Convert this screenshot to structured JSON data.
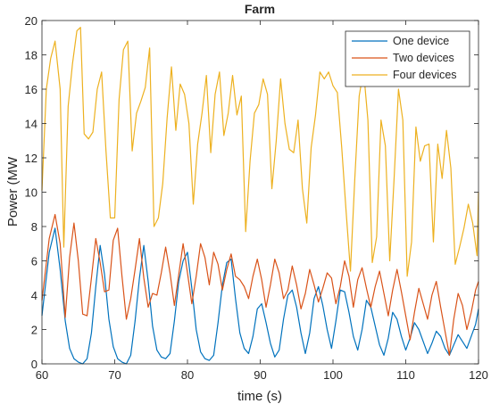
{
  "chart_data": {
    "type": "line",
    "title": "Farm",
    "xlabel": "time (s)",
    "ylabel": "Power (MW",
    "xlim": [
      60,
      120
    ],
    "ylim": [
      0,
      20
    ],
    "xticks": [
      60,
      70,
      80,
      90,
      100,
      110,
      120
    ],
    "yticks": [
      0,
      2,
      4,
      6,
      8,
      10,
      12,
      14,
      16,
      18,
      20
    ],
    "grid": false,
    "legend_position": "top-right",
    "series": [
      {
        "name": "One device",
        "color": "#0072BD",
        "x": [
          60.0,
          61.0,
          61.8,
          62.5,
          63.2,
          63.8,
          64.4,
          65.0,
          65.6,
          66.2,
          66.8,
          67.4,
          68.0,
          68.6,
          69.2,
          69.8,
          70.4,
          71.0,
          71.6,
          72.2,
          72.8,
          73.4,
          74.0,
          74.6,
          75.2,
          75.8,
          76.4,
          77.0,
          77.6,
          78.2,
          78.8,
          79.4,
          80.0,
          80.6,
          81.2,
          81.8,
          82.4,
          83.0,
          83.6,
          84.2,
          84.8,
          85.4,
          86.0,
          86.6,
          87.2,
          87.8,
          88.4,
          89.0,
          89.6,
          90.2,
          90.8,
          91.4,
          92.0,
          92.6,
          93.2,
          93.8,
          94.4,
          95.0,
          95.6,
          96.2,
          96.8,
          97.4,
          98.0,
          98.6,
          99.2,
          99.8,
          100.4,
          101.0,
          101.6,
          102.2,
          102.8,
          103.4,
          104.0,
          104.6,
          105.2,
          105.8,
          106.4,
          107.0,
          107.6,
          108.2,
          108.8,
          109.4,
          110.0,
          110.6,
          111.2,
          111.8,
          112.4,
          113.0,
          113.6,
          114.2,
          114.8,
          115.4,
          116.0,
          116.6,
          117.2,
          117.8,
          118.4,
          119.0,
          119.6,
          120.0
        ],
        "y": [
          2.8,
          6.5,
          7.9,
          5.5,
          2.5,
          0.9,
          0.3,
          0.1,
          0.0,
          0.3,
          1.8,
          4.5,
          6.9,
          5.2,
          2.6,
          1.0,
          0.3,
          0.1,
          0.0,
          0.5,
          2.5,
          5.0,
          6.9,
          4.8,
          2.2,
          0.8,
          0.4,
          0.3,
          0.6,
          2.5,
          4.8,
          6.0,
          6.5,
          4.4,
          2.0,
          0.7,
          0.3,
          0.2,
          0.5,
          2.4,
          4.6,
          5.9,
          6.1,
          3.8,
          1.8,
          0.9,
          0.6,
          1.6,
          3.2,
          3.5,
          2.4,
          1.2,
          0.4,
          0.8,
          2.6,
          4.0,
          4.3,
          3.3,
          1.8,
          0.6,
          1.8,
          3.8,
          4.5,
          3.4,
          2.0,
          0.9,
          2.5,
          4.3,
          4.2,
          3.0,
          1.6,
          0.8,
          2.0,
          3.7,
          3.3,
          2.2,
          1.1,
          0.5,
          1.5,
          3.0,
          2.6,
          1.6,
          0.8,
          1.5,
          2.4,
          2.0,
          1.3,
          0.6,
          1.2,
          1.9,
          1.6,
          0.9,
          0.5,
          1.1,
          1.7,
          1.3,
          0.9,
          1.6,
          2.3,
          3.2
        ]
      },
      {
        "name": "Two devices",
        "color": "#D95319",
        "x": [
          60.0,
          61.0,
          61.8,
          62.5,
          63.2,
          63.8,
          64.4,
          65.0,
          65.6,
          66.2,
          66.8,
          67.4,
          68.0,
          68.6,
          69.2,
          69.8,
          70.4,
          71.0,
          71.6,
          72.2,
          72.8,
          73.4,
          74.0,
          74.6,
          75.2,
          75.8,
          76.4,
          77.0,
          77.6,
          78.2,
          78.8,
          79.4,
          80.0,
          80.6,
          81.2,
          81.8,
          82.4,
          83.0,
          83.6,
          84.2,
          84.8,
          85.4,
          86.0,
          86.6,
          87.2,
          87.8,
          88.4,
          89.0,
          89.6,
          90.2,
          90.8,
          91.4,
          92.0,
          92.6,
          93.2,
          93.8,
          94.4,
          95.0,
          95.6,
          96.2,
          96.8,
          97.4,
          98.0,
          98.6,
          99.2,
          99.8,
          100.4,
          101.0,
          101.6,
          102.2,
          102.8,
          103.4,
          104.0,
          104.6,
          105.2,
          105.8,
          106.4,
          107.0,
          107.6,
          108.2,
          108.8,
          109.4,
          110.0,
          110.6,
          111.2,
          111.8,
          112.4,
          113.0,
          113.6,
          114.2,
          114.8,
          115.4,
          116.0,
          116.6,
          117.2,
          117.8,
          118.4,
          119.0,
          119.6,
          120.0
        ],
        "y": [
          3.7,
          7.3,
          8.7,
          7.0,
          2.7,
          6.2,
          8.2,
          6.0,
          2.9,
          2.8,
          5.0,
          7.3,
          5.9,
          4.2,
          4.3,
          7.2,
          7.9,
          5.1,
          2.6,
          3.8,
          5.5,
          7.3,
          5.0,
          3.3,
          4.1,
          4.0,
          5.3,
          6.8,
          5.3,
          3.4,
          5.2,
          7.0,
          5.3,
          3.5,
          5.1,
          7.0,
          6.2,
          4.6,
          6.5,
          5.8,
          4.3,
          5.5,
          6.4,
          5.1,
          4.9,
          4.5,
          3.8,
          5.1,
          6.1,
          4.9,
          3.3,
          4.6,
          6.1,
          5.3,
          3.8,
          4.3,
          5.7,
          4.6,
          3.2,
          4.1,
          5.5,
          4.6,
          3.6,
          4.4,
          5.3,
          5.0,
          3.5,
          4.5,
          6.0,
          5.1,
          3.3,
          4.9,
          5.6,
          4.4,
          3.3,
          4.5,
          5.4,
          4.1,
          2.8,
          4.3,
          5.5,
          4.2,
          2.8,
          1.4,
          3.0,
          4.4,
          3.5,
          2.6,
          4.0,
          4.8,
          3.3,
          1.9,
          0.5,
          2.6,
          4.1,
          3.4,
          2.0,
          3.0,
          4.3,
          4.8
        ]
      },
      {
        "name": "Four devices",
        "color": "#EDB120",
        "x": [
          60.0,
          60.6,
          61.2,
          61.8,
          62.5,
          63.0,
          63.6,
          64.2,
          64.8,
          65.3,
          65.8,
          66.4,
          67.0,
          67.6,
          68.2,
          68.8,
          69.4,
          70.0,
          70.6,
          71.2,
          71.8,
          72.4,
          73.0,
          73.6,
          74.2,
          74.8,
          75.4,
          76.0,
          76.6,
          77.2,
          77.8,
          78.4,
          79.0,
          79.6,
          80.2,
          80.8,
          81.4,
          82.0,
          82.6,
          83.2,
          83.8,
          84.4,
          85.0,
          85.6,
          86.2,
          86.8,
          87.4,
          88.0,
          88.6,
          89.2,
          89.8,
          90.4,
          91.0,
          91.6,
          92.2,
          92.8,
          93.4,
          94.0,
          94.6,
          95.2,
          95.8,
          96.4,
          97.0,
          97.6,
          98.2,
          98.8,
          99.4,
          100.0,
          100.6,
          101.2,
          101.8,
          102.4,
          103.0,
          103.6,
          104.2,
          104.8,
          105.4,
          106.0,
          106.6,
          107.2,
          107.8,
          108.4,
          109.0,
          109.6,
          110.2,
          110.8,
          111.4,
          112.0,
          112.6,
          113.2,
          113.8,
          114.4,
          115.0,
          115.6,
          116.2,
          116.8,
          117.4,
          118.0,
          118.6,
          119.2,
          119.8,
          120.0
        ],
        "y": [
          10.1,
          16.0,
          17.8,
          18.8,
          16.0,
          6.8,
          15.0,
          17.5,
          19.4,
          19.6,
          13.4,
          13.1,
          13.5,
          16.0,
          17.0,
          12.4,
          8.5,
          8.5,
          15.4,
          18.3,
          18.8,
          12.4,
          14.6,
          15.3,
          16.1,
          18.4,
          8.0,
          8.5,
          10.5,
          14.3,
          17.3,
          13.6,
          16.3,
          15.7,
          14.0,
          9.3,
          12.8,
          14.6,
          16.8,
          12.3,
          15.7,
          17.0,
          13.3,
          14.6,
          16.8,
          14.5,
          15.6,
          7.7,
          11.8,
          14.6,
          15.1,
          16.6,
          15.7,
          10.2,
          13.0,
          16.6,
          14.0,
          12.5,
          12.3,
          14.2,
          10.2,
          8.2,
          12.6,
          14.5,
          17.0,
          16.6,
          17.0,
          16.2,
          15.8,
          12.6,
          8.9,
          5.4,
          10.8,
          15.6,
          17.1,
          14.2,
          5.9,
          7.4,
          14.2,
          12.7,
          6.0,
          10.8,
          16.0,
          14.2,
          5.1,
          7.1,
          13.8,
          11.8,
          12.7,
          12.8,
          7.1,
          12.8,
          10.8,
          13.6,
          11.4,
          5.8,
          6.8,
          7.9,
          9.3,
          8.2,
          6.3,
          10.0
        ]
      }
    ]
  }
}
